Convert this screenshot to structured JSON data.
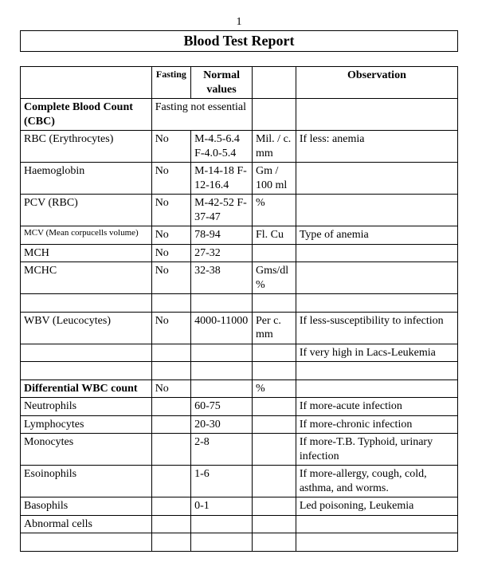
{
  "page_number": "1",
  "title": "Blood Test Report",
  "table": {
    "border_color": "#000000",
    "background_color": "#ffffff",
    "header": {
      "col1": "",
      "col2": "Fasting",
      "col3": "Normal values",
      "col4": "",
      "col5": "Observation"
    },
    "rows": [
      {
        "type": "section",
        "name": "Complete Blood Count (CBC)",
        "span_note": "Fasting not essential",
        "unit": "",
        "obs": ""
      },
      {
        "type": "row",
        "name": "RBC (Erythrocytes)",
        "fasting": "No",
        "normal": "M-4.5-6.4 F-4.0-5.4",
        "unit": "Mil. / c. mm",
        "obs": "If less: anemia"
      },
      {
        "type": "row",
        "name": "Haemoglobin",
        "fasting": "No",
        "normal": "M-14-18 F-12-16.4",
        "unit": "Gm / 100 ml",
        "obs": ""
      },
      {
        "type": "row",
        "name": "PCV (RBC)",
        "fasting": "No",
        "normal": "M-42-52 F-37-47",
        "unit": "%",
        "obs": ""
      },
      {
        "type": "smallrow",
        "name": "MCV (Mean corpucells volume)",
        "fasting": "No",
        "normal": "78-94",
        "unit": "Fl. Cu",
        "obs": "Type of anemia"
      },
      {
        "type": "row",
        "name": "MCH",
        "fasting": "No",
        "normal": "27-32",
        "unit": "",
        "obs": ""
      },
      {
        "type": "row",
        "name": "MCHC",
        "fasting": "No",
        "normal": "32-38",
        "unit": "Gms/dl %",
        "obs": ""
      },
      {
        "type": "blank"
      },
      {
        "type": "row",
        "name": "WBV (Leucocytes)",
        "fasting": "No",
        "normal": "4000-11000",
        "unit": "Per c. mm",
        "obs": "If less-susceptibility to infection"
      },
      {
        "type": "obsonly",
        "obs": "If very high in Lacs-Leukemia"
      },
      {
        "type": "blank"
      },
      {
        "type": "row_bold",
        "name": "Differential WBC count",
        "fasting": "No",
        "normal": "",
        "unit": "%",
        "obs": ""
      },
      {
        "type": "row",
        "name": "Neutrophils",
        "fasting": "",
        "normal": "60-75",
        "unit": "",
        "obs": "If more-acute infection"
      },
      {
        "type": "row",
        "name": "Lymphocytes",
        "fasting": "",
        "normal": "20-30",
        "unit": "",
        "obs": "If more-chronic infection"
      },
      {
        "type": "row",
        "name": "Monocytes",
        "fasting": "",
        "normal": "2-8",
        "unit": "",
        "obs": "If more-T.B. Typhoid, urinary infection"
      },
      {
        "type": "row",
        "name": "Esoinophils",
        "fasting": "",
        "normal": "1-6",
        "unit": "",
        "obs": "If more-allergy, cough, cold, asthma, and worms."
      },
      {
        "type": "row",
        "name": "Basophils",
        "fasting": "",
        "normal": "0-1",
        "unit": "",
        "obs": "Led poisoning, Leukemia"
      },
      {
        "type": "row",
        "name": "Abnormal cells",
        "fasting": "",
        "normal": "",
        "unit": "",
        "obs": ""
      },
      {
        "type": "blank"
      }
    ]
  }
}
